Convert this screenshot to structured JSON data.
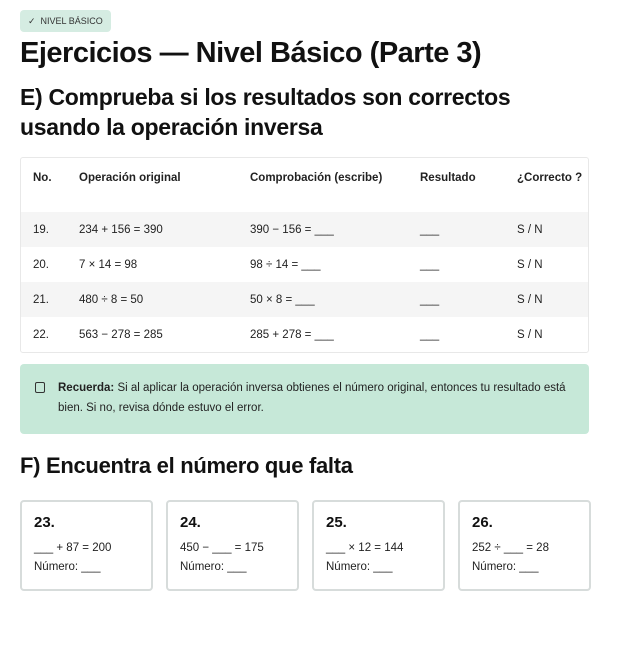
{
  "badge": {
    "icon": "pin-icon",
    "label": "NIVEL BÁSICO"
  },
  "title": "Ejercicios — Nivel Básico (Parte 3)",
  "section_e": {
    "heading": "E) Comprueba si los resultados son correctos usando la operación inversa",
    "columns": [
      "No.",
      "Operación original",
      "Comprobación (escribe)",
      "Resultado",
      "¿Correcto ?"
    ],
    "rows": [
      [
        "19.",
        "234 + 156 = 390",
        "390 − 156 = ___",
        "___",
        "S / N"
      ],
      [
        "20.",
        "7 × 14 = 98",
        "98 ÷ 14 = ___",
        "___",
        "S / N"
      ],
      [
        "21.",
        "480 ÷ 8 = 50",
        "50 × 8 = ___",
        "___",
        "S / N"
      ],
      [
        "22.",
        "563 − 278 = 285",
        "285 + 278 = ___",
        "___",
        "S / N"
      ]
    ]
  },
  "callout": {
    "icon": "note-icon",
    "bold": "Recuerda:",
    "text": " Si al aplicar la operación inversa obtienes el número original, entonces tu resultado está bien. Si no, revisa dónde estuvo el error."
  },
  "section_f": {
    "heading": "F) Encuentra el número que falta",
    "cards": [
      {
        "num": "23.",
        "eq": "___ + 87 = 200",
        "answer": "Número: ___"
      },
      {
        "num": "24.",
        "eq": "450 − ___ = 175",
        "answer": "Número: ___"
      },
      {
        "num": "25.",
        "eq": "___ × 12 = 144",
        "answer": "Número: ___"
      },
      {
        "num": "26.",
        "eq": "252 ÷ ___ = 28",
        "answer": "Número: ___"
      }
    ]
  }
}
